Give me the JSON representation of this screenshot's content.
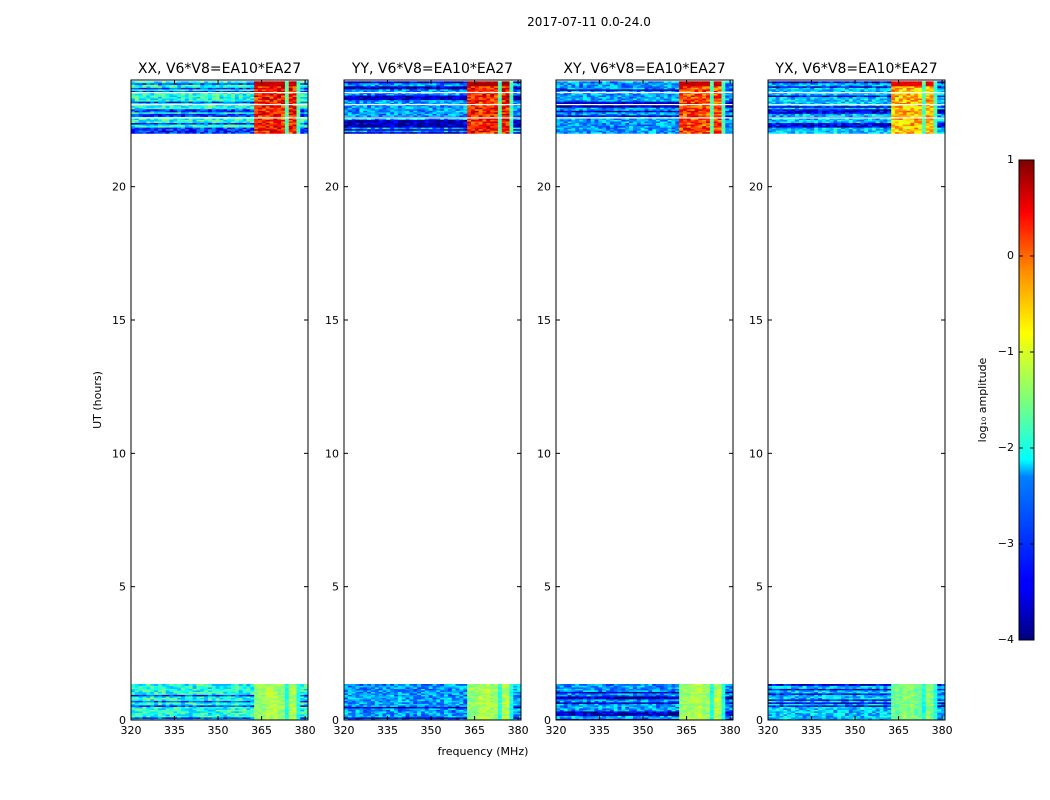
{
  "figure": {
    "suptitle": "2017-07-11 0.0-24.0"
  },
  "chart_data": {
    "type": "heatmap",
    "xlabel": "frequency (MHz)",
    "ylabel": "UT (hours)",
    "xlim": [
      320,
      381
    ],
    "ylim": [
      0,
      24
    ],
    "xticks": [
      320,
      335,
      350,
      365,
      380
    ],
    "xtick_labels": [
      "320",
      "335",
      "350",
      "365",
      "380"
    ],
    "yticks": [
      0,
      5,
      10,
      15,
      20
    ],
    "ytick_labels": [
      "0",
      "5",
      "10",
      "15",
      "20"
    ],
    "data_time_ranges_hours": [
      [
        0.0,
        1.35
      ],
      [
        22.0,
        23.95
      ]
    ],
    "rfi_band_mhz": [
      363,
      378
    ],
    "colormap": "jet",
    "panels": [
      {
        "title": "XX, V6*V8=EA10*EA27",
        "base_level": -2.0,
        "band_level": 0.0,
        "top_band_max": 0.8,
        "bottom_band_level": -1.4
      },
      {
        "title": "YY, V6*V8=EA10*EA27",
        "base_level": -2.6,
        "band_level": 0.0,
        "top_band_max": 0.9,
        "bottom_band_level": -1.4
      },
      {
        "title": "XY, V6*V8=EA10*EA27",
        "base_level": -2.6,
        "band_level": -0.2,
        "top_band_max": 0.8,
        "bottom_band_level": -1.4
      },
      {
        "title": "YX, V6*V8=EA10*EA27",
        "base_level": -2.4,
        "band_level": -0.8,
        "top_band_max": 0.6,
        "bottom_band_level": -1.6
      }
    ],
    "colorbar": {
      "label": "log₁₀ amplitude",
      "range": [
        -4,
        1
      ],
      "ticks": [
        1,
        0,
        -1,
        -2,
        -3,
        -4
      ],
      "tick_labels": [
        "1",
        "0",
        "−1",
        "−2",
        "−3",
        "−4"
      ]
    },
    "grid": false
  }
}
